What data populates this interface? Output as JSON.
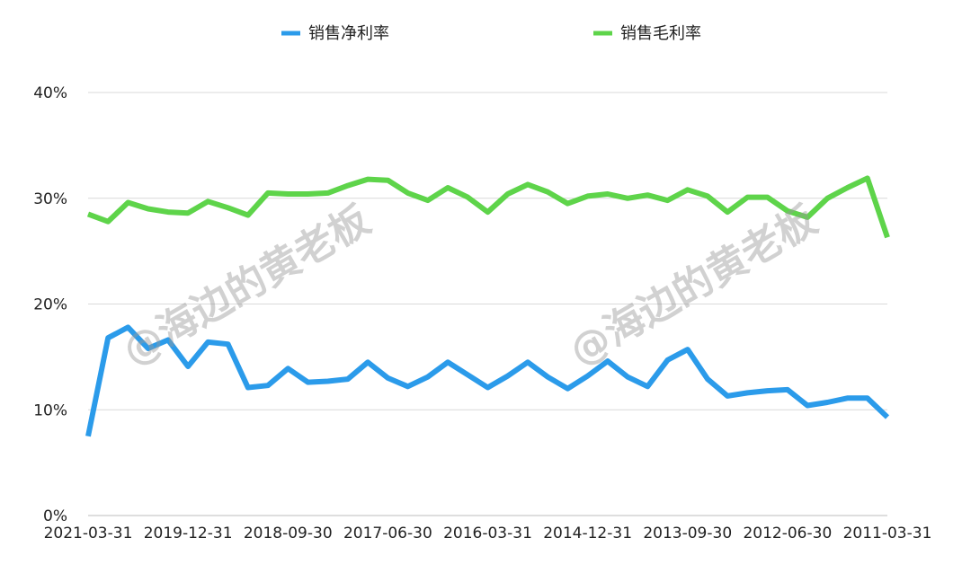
{
  "chart_data": {
    "type": "line",
    "x": [
      "2021-03-31",
      "",
      "",
      "",
      "",
      "2019-12-31",
      "",
      "",
      "",
      "",
      "2018-09-30",
      "",
      "",
      "",
      "",
      "2017-06-30",
      "",
      "",
      "",
      "",
      "2016-03-31",
      "",
      "",
      "",
      "",
      "2014-12-31",
      "",
      "",
      "",
      "",
      "2013-09-30",
      "",
      "",
      "",
      "",
      "2012-06-30",
      "",
      "",
      "",
      "",
      "2011-03-31"
    ],
    "xtick_labels": [
      "2021-03-31",
      "2019-12-31",
      "2018-09-30",
      "2017-06-30",
      "2016-03-31",
      "2014-12-31",
      "2013-09-30",
      "2012-06-30",
      "2011-03-31"
    ],
    "yticks": [
      "0%",
      "10%",
      "20%",
      "30%",
      "40%"
    ],
    "ylim": [
      0,
      40
    ],
    "grid": true,
    "legend_position": "top",
    "series": [
      {
        "name": "销售净利率",
        "color": "#2b9bea",
        "values": [
          7.5,
          16.8,
          17.8,
          15.8,
          16.6,
          14.1,
          16.4,
          16.2,
          12.1,
          12.3,
          13.9,
          12.6,
          12.7,
          12.9,
          14.5,
          13.0,
          12.2,
          13.1,
          14.5,
          13.3,
          12.1,
          13.2,
          14.5,
          13.1,
          12.0,
          13.2,
          14.6,
          13.1,
          12.2,
          14.7,
          15.7,
          12.9,
          11.3,
          11.6,
          11.8,
          11.9,
          10.4,
          10.7,
          11.1,
          11.1,
          9.3
        ]
      },
      {
        "name": "销售毛利率",
        "color": "#5ed44a",
        "values": [
          28.5,
          27.8,
          29.6,
          29.0,
          28.7,
          28.6,
          29.7,
          29.1,
          28.4,
          30.5,
          30.4,
          30.4,
          30.5,
          31.2,
          31.8,
          31.7,
          30.5,
          29.8,
          31.0,
          30.1,
          28.7,
          30.4,
          31.3,
          30.6,
          29.5,
          30.2,
          30.4,
          30.0,
          30.3,
          29.8,
          30.8,
          30.2,
          28.7,
          30.1,
          30.1,
          28.8,
          28.2,
          30.0,
          31.0,
          31.9,
          26.3
        ]
      }
    ]
  },
  "watermark": {
    "text": "@海边的黄老板",
    "color": "#9a9a9a"
  }
}
